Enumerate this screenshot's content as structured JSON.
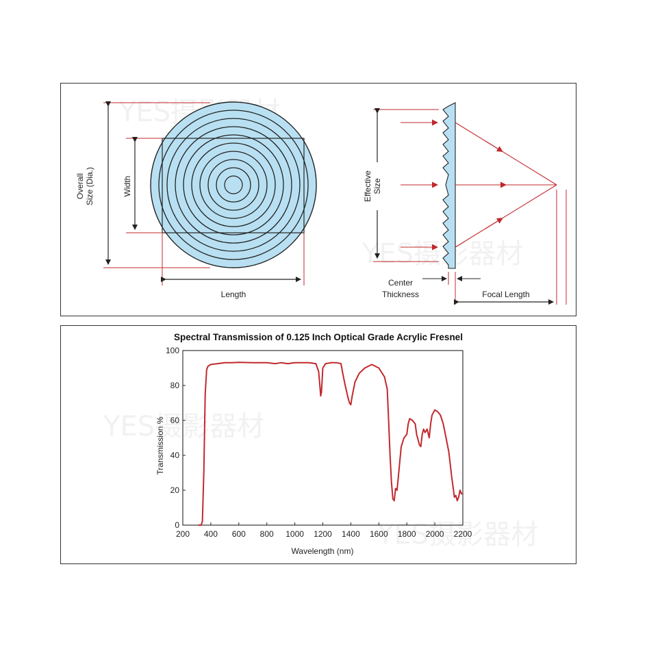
{
  "diagram": {
    "labels": {
      "overall_size_line1": "Overall",
      "overall_size_line2": "Size  (Dia.)",
      "width": "Width",
      "length": "Length",
      "effective_size_line1": "Effective",
      "effective_size_line2": "Size",
      "center_thickness_line1": "Center",
      "center_thickness_line2": "Thickness",
      "focal_length": "Focal Length"
    },
    "colors": {
      "lens_fill": "#b8e0f2",
      "dimension_red": "#c0282d",
      "outline": "#222222"
    }
  },
  "watermark": "YES摄影器材",
  "chart_data": {
    "type": "line",
    "title": "Spectral Transmission of 0.125 Inch Optical Grade Acrylic Fresnel",
    "xlabel": "Wavelength (nm)",
    "ylabel": "Transmission %",
    "xlim": [
      200,
      2200
    ],
    "ylim": [
      0,
      100
    ],
    "xticks": [
      200,
      400,
      600,
      800,
      1000,
      1200,
      1400,
      1600,
      1800,
      2000,
      2200
    ],
    "yticks": [
      0,
      20,
      40,
      60,
      80,
      100
    ],
    "grid": false,
    "line_color": "#c0282d",
    "series": [
      {
        "points": [
          [
            310,
            0
          ],
          [
            330,
            0
          ],
          [
            340,
            2
          ],
          [
            350,
            30
          ],
          [
            360,
            75
          ],
          [
            370,
            89
          ],
          [
            380,
            91
          ],
          [
            400,
            92
          ],
          [
            450,
            92.5
          ],
          [
            500,
            93
          ],
          [
            550,
            93
          ],
          [
            600,
            93.2
          ],
          [
            700,
            93
          ],
          [
            800,
            93
          ],
          [
            860,
            92.5
          ],
          [
            900,
            93
          ],
          [
            950,
            92.5
          ],
          [
            1000,
            93
          ],
          [
            1050,
            93
          ],
          [
            1100,
            93
          ],
          [
            1150,
            92.5
          ],
          [
            1170,
            88
          ],
          [
            1180,
            79
          ],
          [
            1185,
            74
          ],
          [
            1190,
            76
          ],
          [
            1200,
            90
          ],
          [
            1220,
            92.5
          ],
          [
            1260,
            93
          ],
          [
            1300,
            93
          ],
          [
            1330,
            92.5
          ],
          [
            1340,
            88
          ],
          [
            1360,
            80
          ],
          [
            1380,
            73
          ],
          [
            1390,
            70
          ],
          [
            1400,
            69
          ],
          [
            1410,
            74
          ],
          [
            1430,
            82
          ],
          [
            1460,
            87
          ],
          [
            1500,
            90
          ],
          [
            1550,
            92
          ],
          [
            1600,
            90
          ],
          [
            1640,
            85
          ],
          [
            1660,
            78
          ],
          [
            1670,
            60
          ],
          [
            1680,
            40
          ],
          [
            1690,
            25
          ],
          [
            1700,
            15
          ],
          [
            1710,
            14
          ],
          [
            1720,
            21
          ],
          [
            1730,
            20
          ],
          [
            1740,
            28
          ],
          [
            1760,
            45
          ],
          [
            1780,
            50
          ],
          [
            1800,
            52
          ],
          [
            1810,
            58
          ],
          [
            1820,
            61
          ],
          [
            1840,
            60
          ],
          [
            1860,
            58
          ],
          [
            1870,
            52
          ],
          [
            1880,
            49
          ],
          [
            1890,
            46
          ],
          [
            1900,
            45
          ],
          [
            1910,
            52
          ],
          [
            1920,
            55
          ],
          [
            1930,
            53
          ],
          [
            1945,
            55
          ],
          [
            1960,
            50
          ],
          [
            1970,
            58
          ],
          [
            1980,
            63
          ],
          [
            2000,
            66
          ],
          [
            2020,
            65
          ],
          [
            2040,
            63
          ],
          [
            2060,
            58
          ],
          [
            2080,
            50
          ],
          [
            2100,
            42
          ],
          [
            2110,
            35
          ],
          [
            2120,
            28
          ],
          [
            2130,
            22
          ],
          [
            2140,
            16
          ],
          [
            2150,
            17
          ],
          [
            2160,
            14
          ],
          [
            2170,
            16
          ],
          [
            2180,
            20
          ],
          [
            2190,
            18
          ],
          [
            2200,
            18
          ]
        ]
      }
    ]
  }
}
